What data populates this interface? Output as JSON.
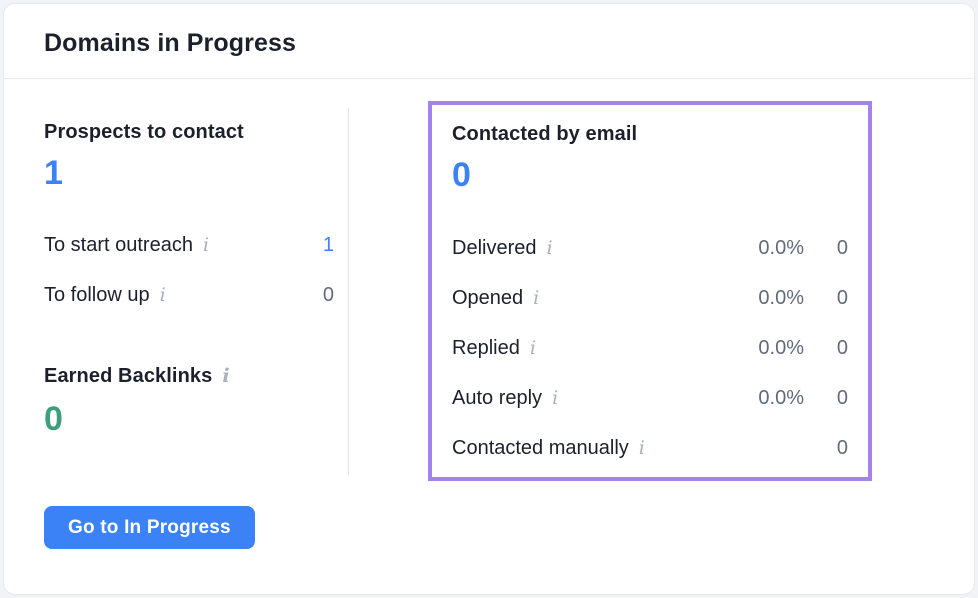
{
  "header": {
    "title": "Domains in Progress"
  },
  "icons": {
    "info": "i"
  },
  "left": {
    "heading": "Prospects to contact",
    "value": "1",
    "rows": [
      {
        "label": "To start outreach",
        "value": "1"
      },
      {
        "label": "To follow up",
        "value": "0"
      }
    ],
    "earned": {
      "label": "Earned Backlinks",
      "value": "0"
    },
    "button_label": "Go to In Progress"
  },
  "right": {
    "heading": "Contacted by email",
    "value": "0",
    "rows": [
      {
        "label": "Delivered",
        "percent": "0.0%",
        "count": "0"
      },
      {
        "label": "Opened",
        "percent": "0.0%",
        "count": "0"
      },
      {
        "label": "Replied",
        "percent": "0.0%",
        "count": "0"
      },
      {
        "label": "Auto reply",
        "percent": "0.0%",
        "count": "0"
      },
      {
        "label": "Contacted manually",
        "percent": "",
        "count": "0"
      }
    ]
  },
  "colors": {
    "accent_blue": "#3b82f6",
    "accent_green": "#3f9e7e",
    "highlight_purple": "#a583ef",
    "muted_gray": "#626a7a"
  }
}
